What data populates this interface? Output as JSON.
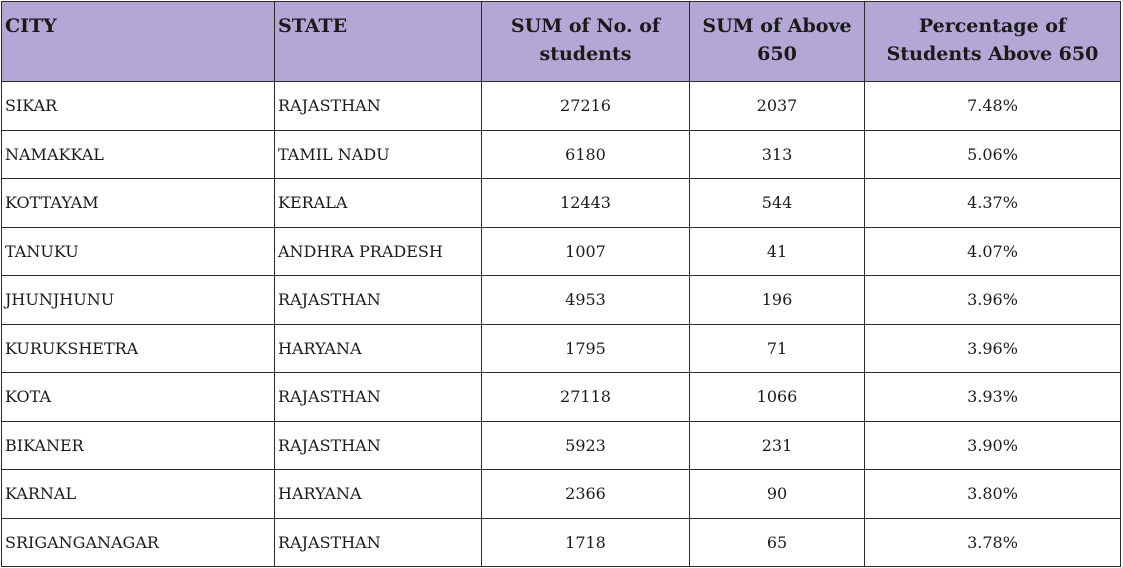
{
  "table": {
    "headers": {
      "city": "CITY",
      "state": "STATE",
      "sum_students": "SUM of No. of students",
      "sum_above": "SUM of Above 650",
      "percentage": "Percentage of Students Above 650"
    },
    "rows": [
      {
        "city": "SIKAR",
        "state": "RAJASTHAN",
        "sum_students": "27216",
        "sum_above": "2037",
        "percentage": "7.48%"
      },
      {
        "city": "NAMAKKAL",
        "state": "TAMIL NADU",
        "sum_students": "6180",
        "sum_above": "313",
        "percentage": "5.06%"
      },
      {
        "city": "KOTTAYAM",
        "state": "KERALA",
        "sum_students": "12443",
        "sum_above": "544",
        "percentage": "4.37%"
      },
      {
        "city": "TANUKU",
        "state": "ANDHRA PRADESH",
        "sum_students": "1007",
        "sum_above": "41",
        "percentage": "4.07%"
      },
      {
        "city": "JHUNJHUNU",
        "state": "RAJASTHAN",
        "sum_students": "4953",
        "sum_above": "196",
        "percentage": "3.96%"
      },
      {
        "city": "KURUKSHETRA",
        "state": "HARYANA",
        "sum_students": "1795",
        "sum_above": "71",
        "percentage": "3.96%"
      },
      {
        "city": "KOTA",
        "state": "RAJASTHAN",
        "sum_students": "27118",
        "sum_above": "1066",
        "percentage": "3.93%"
      },
      {
        "city": "BIKANER",
        "state": "RAJASTHAN",
        "sum_students": "5923",
        "sum_above": "231",
        "percentage": "3.90%"
      },
      {
        "city": "KARNAL",
        "state": "HARYANA",
        "sum_students": "2366",
        "sum_above": "90",
        "percentage": "3.80%"
      },
      {
        "city": "SRIGANGANAGAR",
        "state": "RAJASTHAN",
        "sum_students": "1718",
        "sum_above": "65",
        "percentage": "3.78%"
      }
    ]
  },
  "colors": {
    "header_bg": "#b4a7d6",
    "border": "#2b2b2b"
  }
}
